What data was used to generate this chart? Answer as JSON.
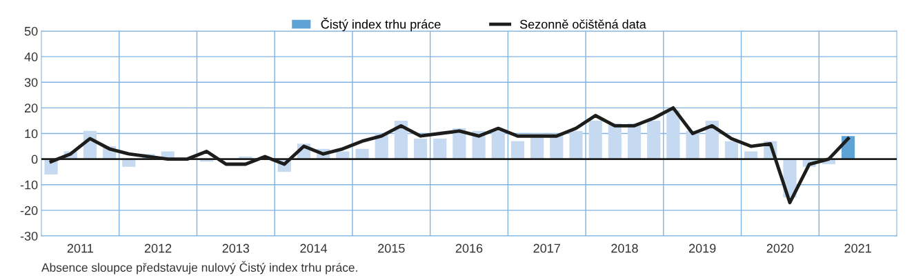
{
  "chart_data": {
    "type": "bar",
    "x": [
      2011.125,
      2011.375,
      2011.625,
      2011.875,
      2012.125,
      2012.375,
      2012.625,
      2012.875,
      2013.125,
      2013.375,
      2013.625,
      2013.875,
      2014.125,
      2014.375,
      2014.625,
      2014.875,
      2015.125,
      2015.375,
      2015.625,
      2015.875,
      2016.125,
      2016.375,
      2016.625,
      2016.875,
      2017.125,
      2017.375,
      2017.625,
      2017.875,
      2018.125,
      2018.375,
      2018.625,
      2018.875,
      2019.125,
      2019.375,
      2019.625,
      2019.875,
      2020.125,
      2020.375,
      2020.625,
      2020.875,
      2021.125,
      2021.375
    ],
    "series": [
      {
        "name": "Čistý index trhu práce",
        "color": "#5fa3d6",
        "colors": [
          "#c5d9f0",
          "#c5d9f0",
          "#c5d9f0",
          "#c5d9f0",
          "#c5d9f0",
          "#c5d9f0",
          "#c5d9f0",
          "#c5d9f0",
          "#c5d9f0",
          "#c5d9f0",
          "#c5d9f0",
          "#c5d9f0",
          "#c5d9f0",
          "#c5d9f0",
          "#c5d9f0",
          "#c5d9f0",
          "#c5d9f0",
          "#c5d9f0",
          "#c5d9f0",
          "#c5d9f0",
          "#c5d9f0",
          "#c5d9f0",
          "#c5d9f0",
          "#c5d9f0",
          "#c5d9f0",
          "#c5d9f0",
          "#c5d9f0",
          "#c5d9f0",
          "#c5d9f0",
          "#c5d9f0",
          "#c5d9f0",
          "#c5d9f0",
          "#c5d9f0",
          "#c5d9f0",
          "#c5d9f0",
          "#c5d9f0",
          "#c5d9f0",
          "#c5d9f0",
          "#c5d9f0",
          "#c5d9f0",
          "#c5d9f0",
          "#5fa3d6"
        ],
        "values": [
          -6,
          3,
          11,
          5,
          -3,
          2,
          3,
          0,
          -1,
          0,
          1,
          0,
          -5,
          6,
          4,
          3,
          4,
          10,
          15,
          8,
          8,
          12,
          11,
          11,
          7,
          10,
          10,
          11,
          15,
          14,
          14,
          15,
          19,
          11,
          15,
          7,
          3,
          7,
          -15,
          -3,
          -2,
          9
        ]
      },
      {
        "name": "Sezonně očištěná data",
        "type": "line",
        "color": "#1d1d1b",
        "values": [
          -1,
          2,
          8,
          4,
          2,
          1,
          0,
          0,
          3,
          -2,
          -2,
          1,
          -2,
          5,
          2,
          4,
          7,
          9,
          13,
          9,
          10,
          11,
          9,
          12,
          9,
          9,
          9,
          12,
          17,
          13,
          13,
          16,
          20,
          10,
          13,
          8,
          5,
          6,
          -17,
          -2,
          0,
          8
        ]
      }
    ],
    "xlim": [
      2011,
      2022
    ],
    "xticks": [
      {
        "value": 2011.5,
        "label": "2011"
      },
      {
        "value": 2012,
        "label": null
      },
      {
        "value": 2012.5,
        "label": "2012"
      },
      {
        "value": 2013,
        "label": null
      },
      {
        "value": 2013.5,
        "label": "2013"
      },
      {
        "value": 2014,
        "label": null
      },
      {
        "value": 2014.5,
        "label": "2014"
      },
      {
        "value": 2015,
        "label": null
      },
      {
        "value": 2015.5,
        "label": "2015"
      },
      {
        "value": 2016,
        "label": null
      },
      {
        "value": 2016.5,
        "label": "2016"
      },
      {
        "value": 2017,
        "label": null
      },
      {
        "value": 2017.5,
        "label": "2017"
      },
      {
        "value": 2018,
        "label": null
      },
      {
        "value": 2018.5,
        "label": "2018"
      },
      {
        "value": 2019,
        "label": null
      },
      {
        "value": 2019.5,
        "label": "2019"
      },
      {
        "value": 2020,
        "label": null
      },
      {
        "value": 2020.5,
        "label": "2020"
      },
      {
        "value": 2021,
        "label": null
      },
      {
        "value": 2021.5,
        "label": "2021"
      }
    ],
    "ylim": [
      -30,
      50
    ],
    "yticks": [
      -30,
      -20,
      -10,
      0,
      10,
      20,
      30,
      40,
      50
    ],
    "ref_lines": [
      {
        "axis": "y",
        "value": 0,
        "color": "#1d1d1b"
      }
    ],
    "grid": true,
    "legend": "top",
    "annotations": [
      "Absence sloupce představuje nulový Čistý index trhu práce."
    ]
  }
}
